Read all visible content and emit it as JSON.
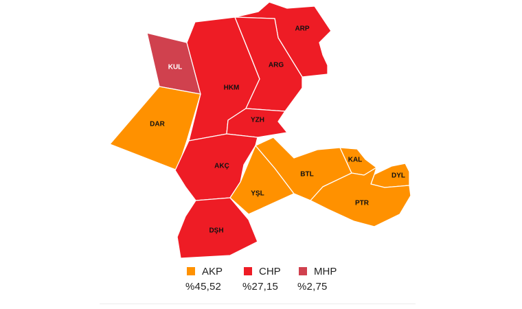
{
  "parties": {
    "AKP": {
      "color": "#FF9100"
    },
    "CHP": {
      "color": "#EE1C25"
    },
    "MHP": {
      "color": "#D0414E"
    }
  },
  "districts": [
    {
      "code": "KUL",
      "party": "MHP"
    },
    {
      "code": "DAR",
      "party": "AKP"
    },
    {
      "code": "HKM",
      "party": "CHP"
    },
    {
      "code": "ARP",
      "party": "CHP"
    },
    {
      "code": "ARG",
      "party": "CHP"
    },
    {
      "code": "YZH",
      "party": "CHP"
    },
    {
      "code": "AKÇ",
      "party": "CHP"
    },
    {
      "code": "DŞH",
      "party": "CHP"
    },
    {
      "code": "YŞL",
      "party": "AKP"
    },
    {
      "code": "BTL",
      "party": "AKP"
    },
    {
      "code": "KAL",
      "party": "AKP"
    },
    {
      "code": "DYL",
      "party": "AKP"
    },
    {
      "code": "PTR",
      "party": "AKP"
    }
  ],
  "legend": [
    {
      "party": "AKP",
      "percent": "%45,52"
    },
    {
      "party": "CHP",
      "percent": "%27,15"
    },
    {
      "party": "MHP",
      "percent": "%2,75"
    }
  ]
}
